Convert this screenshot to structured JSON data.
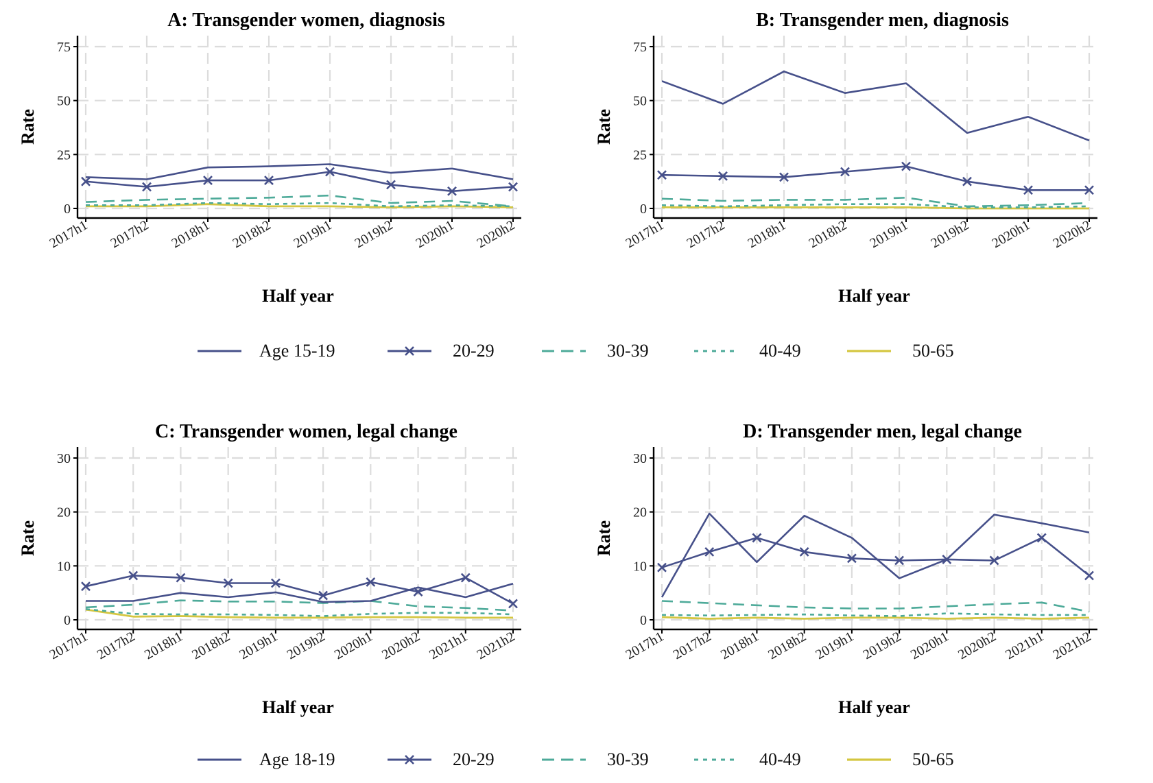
{
  "colors": {
    "c15": "#46508a",
    "c20": "#46508a",
    "c30": "#4daa99",
    "c40": "#4daa99",
    "c50": "#d4c640",
    "grid": "#dcdcdc",
    "axis": "#000000"
  },
  "legend_top": [
    {
      "label": "Age 15-19",
      "style": "solid"
    },
    {
      "label": "20-29",
      "style": "solid-x"
    },
    {
      "label": "30-39",
      "style": "longdash"
    },
    {
      "label": "40-49",
      "style": "dotted"
    },
    {
      "label": "50-65",
      "style": "solid-yellow"
    }
  ],
  "legend_bottom": [
    {
      "label": "Age 18-19",
      "style": "solid"
    },
    {
      "label": "20-29",
      "style": "solid-x"
    },
    {
      "label": "30-39",
      "style": "longdash"
    },
    {
      "label": "40-49",
      "style": "dotted"
    },
    {
      "label": "50-65",
      "style": "solid-yellow"
    }
  ],
  "chart_data": [
    {
      "id": "a",
      "type": "line",
      "title": "A: Transgender women, diagnosis",
      "xlabel": "Half year",
      "ylabel": "Rate",
      "ylim": [
        0,
        75
      ],
      "yticks": [
        0,
        25,
        50,
        75
      ],
      "grid": true,
      "categories": [
        "2017h1",
        "2017h2",
        "2018h1",
        "2018h2",
        "2019h1",
        "2019h2",
        "2020h1",
        "2020h2"
      ],
      "series": [
        {
          "values": [
            14.5,
            13.5,
            19,
            19.5,
            20.5,
            16.5,
            18.5,
            13.5
          ]
        },
        {
          "values": [
            12.5,
            10,
            13,
            13,
            17,
            11,
            8,
            10
          ]
        },
        {
          "values": [
            3,
            4,
            4.5,
            5,
            6,
            2.5,
            3.5,
            1
          ]
        },
        {
          "values": [
            1.5,
            1.5,
            2.5,
            2,
            2.5,
            1,
            1.5,
            1
          ]
        },
        {
          "values": [
            1,
            1,
            2,
            1,
            1,
            0.5,
            1,
            0.5
          ]
        }
      ]
    },
    {
      "id": "b",
      "type": "line",
      "title": "B: Transgender men, diagnosis",
      "xlabel": "Half year",
      "ylabel": "Rate",
      "ylim": [
        0,
        75
      ],
      "yticks": [
        0,
        25,
        50,
        75
      ],
      "grid": true,
      "categories": [
        "2017h1",
        "2017h2",
        "2018h1",
        "2018h2",
        "2019h1",
        "2019h2",
        "2020h1",
        "2020h2"
      ],
      "series": [
        {
          "values": [
            59,
            48.5,
            63.5,
            53.5,
            58,
            35,
            42.5,
            31.5
          ]
        },
        {
          "values": [
            15.5,
            15,
            14.5,
            17,
            19.5,
            12.5,
            8.5,
            8.5
          ]
        },
        {
          "values": [
            4.5,
            3.5,
            4,
            4,
            5,
            1,
            1.5,
            2.5
          ]
        },
        {
          "values": [
            1.5,
            1,
            1.5,
            2,
            2,
            0.5,
            0.5,
            1
          ]
        },
        {
          "values": [
            0.5,
            0.5,
            0.5,
            0.5,
            0.5,
            0,
            0,
            0
          ]
        }
      ]
    },
    {
      "id": "c",
      "type": "line",
      "title": "C: Transgender women, legal change",
      "xlabel": "Half year",
      "ylabel": "Rate",
      "ylim": [
        0,
        30
      ],
      "yticks": [
        0,
        10,
        20,
        30
      ],
      "grid": true,
      "categories": [
        "2017h1",
        "2017h2",
        "2018h1",
        "2018h2",
        "2019h1",
        "2019h2",
        "2020h1",
        "2020h2",
        "2021h1",
        "2021h2"
      ],
      "series": [
        {
          "values": [
            3.5,
            3.5,
            5,
            4.2,
            5.1,
            3.3,
            3.5,
            6,
            4.2,
            6.7
          ]
        },
        {
          "values": [
            6.2,
            8.2,
            7.8,
            6.8,
            6.8,
            4.5,
            7,
            5.2,
            7.8,
            3
          ]
        },
        {
          "values": [
            2.3,
            2.8,
            3.6,
            3.4,
            3.4,
            3.1,
            3.5,
            2.5,
            2.2,
            1.7
          ]
        },
        {
          "values": [
            2,
            1.1,
            1,
            1,
            0.9,
            0.7,
            1.1,
            1.3,
            1.3,
            1
          ]
        },
        {
          "values": [
            1.9,
            0.6,
            0.7,
            0.5,
            0.4,
            0.4,
            0.5,
            0.5,
            0.4,
            0.4
          ]
        }
      ]
    },
    {
      "id": "d",
      "type": "line",
      "title": "D: Transgender men, legal change",
      "xlabel": "Half year",
      "ylabel": "Rate",
      "ylim": [
        0,
        30
      ],
      "yticks": [
        0,
        10,
        20,
        30
      ],
      "grid": true,
      "categories": [
        "2017h1",
        "2017h2",
        "2018h1",
        "2018h2",
        "2019h1",
        "2019h2",
        "2020h1",
        "2020h2",
        "2021h1",
        "2021h2"
      ],
      "series": [
        {
          "values": [
            4.2,
            19.7,
            10.7,
            19.3,
            15.2,
            7.7,
            11.2,
            19.5,
            17.9,
            16.2
          ]
        },
        {
          "values": [
            9.7,
            12.6,
            15.2,
            12.6,
            11.4,
            11,
            11.2,
            11,
            15.2,
            8.2
          ]
        },
        {
          "values": [
            3.5,
            3.1,
            2.7,
            2.3,
            2.1,
            2.1,
            2.5,
            2.9,
            3.2,
            1.5
          ]
        },
        {
          "values": [
            0.9,
            0.8,
            0.9,
            1,
            0.8,
            0.7,
            1.2,
            1,
            0.9,
            0.9
          ]
        },
        {
          "values": [
            0.5,
            0.2,
            0.4,
            0.2,
            0.4,
            0.4,
            0.2,
            0.4,
            0.2,
            0.4
          ]
        }
      ]
    }
  ]
}
